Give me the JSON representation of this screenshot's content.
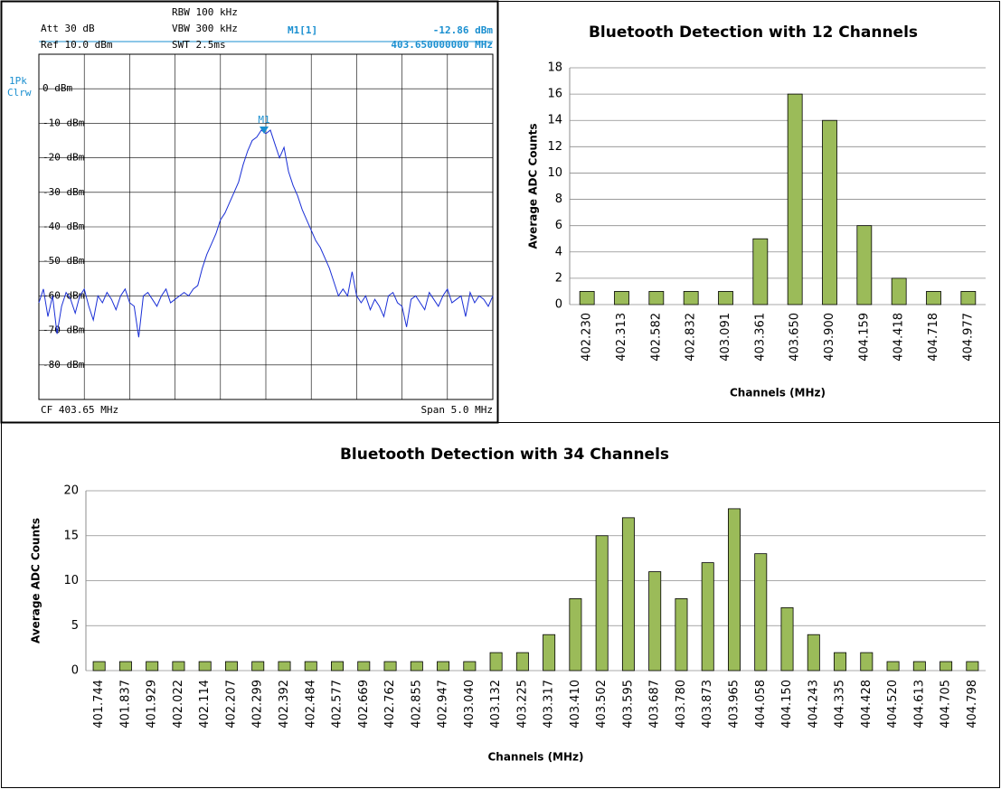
{
  "chart_data": [
    {
      "type": "line",
      "labels": {
        "att": "Att  30 dB",
        "ref": "Ref  10.0 dBm",
        "rbw": "RBW 100 kHz",
        "vbw": "VBW 300 kHz",
        "swt": "SWT 2.5ms",
        "marker_name": "M1[1]",
        "marker_level": "-12.86 dBm",
        "marker_freq": "403.650000000 MHz",
        "detector": "1Pk",
        "mode": "Clrw",
        "marker": "M1",
        "center": "CF 403.65 MHz",
        "span": "Span 5.0 MHz"
      },
      "color": "#1a2fd6",
      "grid": true,
      "ylim": [
        -90,
        10
      ],
      "yticks": [
        {
          "value": 0,
          "label": "0 dBm"
        },
        {
          "value": -10,
          "label": "-10 dBm"
        },
        {
          "value": -20,
          "label": "-20 dBm"
        },
        {
          "value": -30,
          "label": "-30 dBm"
        },
        {
          "value": -40,
          "label": "-40 dBm"
        },
        {
          "value": -50,
          "label": "-50 dBm"
        },
        {
          "value": -60,
          "label": "-60 dBm"
        },
        {
          "value": -70,
          "label": "-70 dBm"
        },
        {
          "value": -80,
          "label": "-80 dBm"
        }
      ],
      "values": [
        -62,
        -58,
        -66,
        -60,
        -71,
        -63,
        -59,
        -61,
        -65,
        -60,
        -58,
        -63,
        -67,
        -60,
        -62,
        -59,
        -61,
        -64,
        -60,
        -58,
        -62,
        -63,
        -72,
        -60,
        -59,
        -61,
        -63,
        -60,
        -58,
        -62,
        -61,
        -60,
        -59,
        -60,
        -58,
        -57,
        -52,
        -48,
        -45,
        -42,
        -38,
        -36,
        -33,
        -30,
        -27,
        -22,
        -18,
        -15,
        -14,
        -12,
        -13,
        -12,
        -16,
        -20,
        -17,
        -24,
        -28,
        -31,
        -35,
        -38,
        -41,
        -44,
        -46,
        -49,
        -52,
        -56,
        -60,
        -58,
        -60,
        -53,
        -60,
        -62,
        -60,
        -64,
        -61,
        -63,
        -66,
        -60,
        -59,
        -62,
        -63,
        -69,
        -61,
        -60,
        -62,
        -64,
        -59,
        -61,
        -63,
        -60,
        -58,
        -62,
        -61,
        -60,
        -66,
        -59,
        -62,
        -60,
        -61,
        -63,
        -60
      ]
    },
    {
      "type": "bar",
      "title": "Bluetooth Detection with 12 Channels",
      "x_label": "Channels (MHz)",
      "y_label": "Average ADC Counts",
      "color": "#9bbb59",
      "grid": true,
      "categories": [
        "402.230",
        "402.313",
        "402.582",
        "402.832",
        "403.091",
        "403.361",
        "403.650",
        "403.900",
        "404.159",
        "404.418",
        "404.718",
        "404.977"
      ],
      "values": [
        1,
        1,
        1,
        1,
        1,
        5,
        16,
        14,
        6,
        2,
        1,
        1
      ],
      "ylim": [
        0,
        18
      ],
      "yticks": [
        0,
        2,
        4,
        6,
        8,
        10,
        12,
        14,
        16,
        18
      ]
    },
    {
      "type": "bar",
      "title": "Bluetooth Detection with 34 Channels",
      "x_label": "Channels (MHz)",
      "y_label": "Average ADC Counts",
      "color": "#9bbb59",
      "grid": true,
      "categories": [
        "401.744",
        "401.837",
        "401.929",
        "402.022",
        "402.114",
        "402.207",
        "402.299",
        "402.392",
        "402.484",
        "402.577",
        "402.669",
        "402.762",
        "402.855",
        "402.947",
        "403.040",
        "403.132",
        "403.225",
        "403.317",
        "403.410",
        "403.502",
        "403.595",
        "403.687",
        "403.780",
        "403.873",
        "403.965",
        "404.058",
        "404.150",
        "404.243",
        "404.335",
        "404.428",
        "404.520",
        "404.613",
        "404.705",
        "404.798"
      ],
      "values": [
        1,
        1,
        1,
        1,
        1,
        1,
        1,
        1,
        1,
        1,
        1,
        1,
        1,
        1,
        1,
        2,
        2,
        4,
        8,
        15,
        17,
        11,
        8,
        12,
        18,
        13,
        7,
        4,
        2,
        2,
        1,
        1,
        1,
        1
      ],
      "ylim": [
        0,
        20
      ],
      "yticks": [
        0,
        5,
        10,
        15,
        20
      ]
    }
  ]
}
